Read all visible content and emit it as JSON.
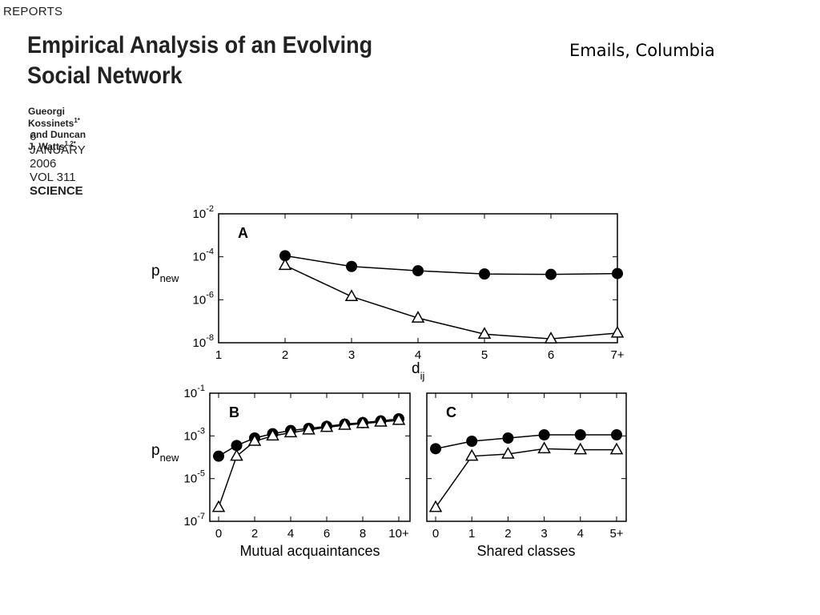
{
  "header": {
    "section_label": "REPORTS",
    "paper_title": "Empirical Analysis of an Evolving Social Network",
    "authors": {
      "author1": "Gueorgi Kossinets",
      "author1_sup": "1*",
      "joiner": " and ",
      "author2": "Duncan J. Watts",
      "author2_sup": "1,2*"
    },
    "date": "6 JANUARY 2006",
    "volume": "VOL 311",
    "journal": "SCIENCE"
  },
  "slide_label": "Emails, Columbia",
  "chart_data": [
    {
      "panel": "A",
      "type": "line",
      "scale": "log",
      "categories": [
        "1",
        "2",
        "3",
        "4",
        "5",
        "6",
        "7+"
      ],
      "ylabel": "p",
      "ylabel_sub": "new",
      "xlabel": "d",
      "xlabel_sub": "ij",
      "yticks": [
        -8,
        -6,
        -4,
        -2
      ],
      "ylim_exp": [
        -8,
        -2
      ],
      "series": [
        {
          "marker": "circle",
          "values": [
            null,
            -3.95,
            -4.45,
            -4.65,
            -4.8,
            -4.82,
            -4.78
          ]
        },
        {
          "marker": "triangle",
          "values": [
            null,
            -4.4,
            -5.85,
            -6.85,
            -7.6,
            -7.82,
            -7.55
          ]
        }
      ]
    },
    {
      "panel": "B",
      "type": "line",
      "scale": "log",
      "xlabel": "Mutual acquaintances",
      "ylabel": "p",
      "ylabel_sub": "new",
      "xticks": [
        "0",
        "2",
        "4",
        "6",
        "8",
        "10+"
      ],
      "x": [
        0,
        1,
        2,
        3,
        4,
        5,
        6,
        7,
        8,
        9,
        10
      ],
      "yticks": [
        -7,
        -5,
        -3,
        -1
      ],
      "ylim_exp": [
        -7,
        -1
      ],
      "series": [
        {
          "marker": "circle",
          "values": [
            -3.95,
            -3.45,
            -3.1,
            -2.9,
            -2.75,
            -2.65,
            -2.55,
            -2.45,
            -2.38,
            -2.3,
            -2.2
          ]
        },
        {
          "marker": "triangle",
          "values": [
            -6.35,
            -3.95,
            -3.25,
            -3.0,
            -2.85,
            -2.72,
            -2.6,
            -2.5,
            -2.42,
            -2.35,
            -2.27
          ]
        }
      ]
    },
    {
      "panel": "C",
      "type": "line",
      "scale": "log",
      "xlabel": "Shared classes",
      "xticks": [
        "0",
        "1",
        "2",
        "3",
        "4",
        "5+"
      ],
      "x": [
        0,
        1,
        2,
        3,
        4,
        5
      ],
      "ylim_exp": [
        -7,
        -1
      ],
      "series": [
        {
          "marker": "circle",
          "values": [
            -3.6,
            -3.25,
            -3.1,
            -2.95,
            -2.95,
            -2.95
          ]
        },
        {
          "marker": "triangle",
          "values": [
            -6.35,
            -3.95,
            -3.85,
            -3.6,
            -3.65,
            -3.65
          ]
        }
      ]
    }
  ]
}
